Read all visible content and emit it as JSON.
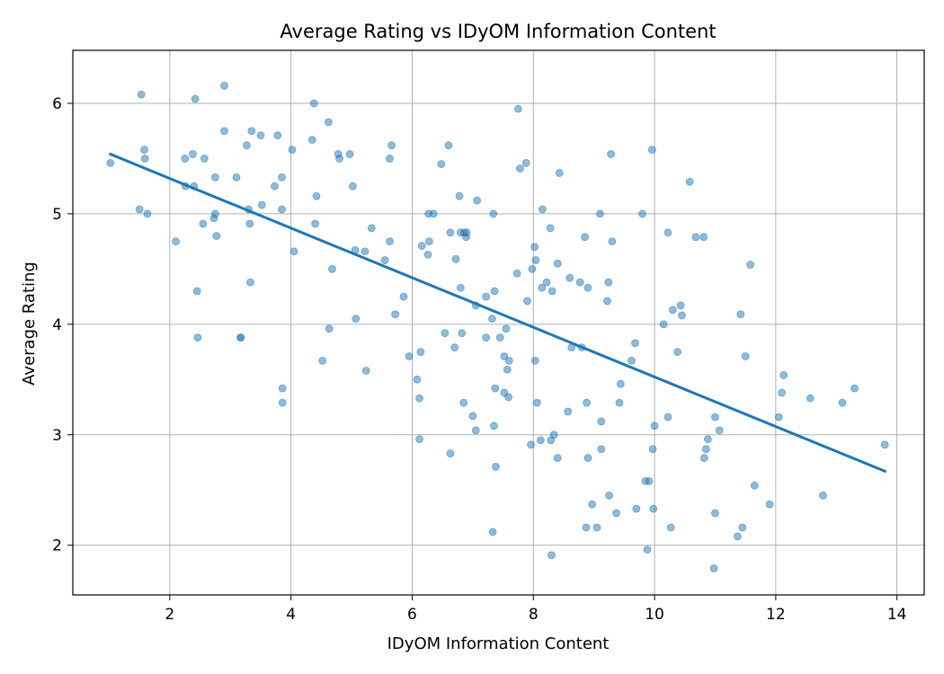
{
  "chart_data": {
    "type": "scatter",
    "title": "Average Rating vs IDyOM Information Content",
    "xlabel": "IDyOM Information Content",
    "ylabel": "Average Rating",
    "xlim": [
      0.4,
      14.45
    ],
    "ylim": [
      1.55,
      6.48
    ],
    "xticks": [
      2,
      4,
      6,
      8,
      10,
      12,
      14
    ],
    "yticks": [
      2,
      3,
      4,
      5,
      6
    ],
    "grid": true,
    "point_color": "#1f77b4",
    "line_color": "#1f77b4",
    "points": [
      [
        1.02,
        5.46
      ],
      [
        1.5,
        5.04
      ],
      [
        1.53,
        6.08
      ],
      [
        1.58,
        5.58
      ],
      [
        1.59,
        5.5
      ],
      [
        1.63,
        5.0
      ],
      [
        2.1,
        4.75
      ],
      [
        2.25,
        5.5
      ],
      [
        2.26,
        5.25
      ],
      [
        2.38,
        5.54
      ],
      [
        2.4,
        5.25
      ],
      [
        2.42,
        6.04
      ],
      [
        2.45,
        4.3
      ],
      [
        2.46,
        3.88
      ],
      [
        2.55,
        4.91
      ],
      [
        2.57,
        5.5
      ],
      [
        2.73,
        4.96
      ],
      [
        2.75,
        5.33
      ],
      [
        2.75,
        5.0
      ],
      [
        2.77,
        4.8
      ],
      [
        2.9,
        6.16
      ],
      [
        2.9,
        5.75
      ],
      [
        3.1,
        5.33
      ],
      [
        3.17,
        3.88
      ],
      [
        3.17,
        3.88
      ],
      [
        3.27,
        5.62
      ],
      [
        3.3,
        5.04
      ],
      [
        3.32,
        4.91
      ],
      [
        3.33,
        4.38
      ],
      [
        3.35,
        5.75
      ],
      [
        3.5,
        5.71
      ],
      [
        3.52,
        5.08
      ],
      [
        3.73,
        5.25
      ],
      [
        3.78,
        5.71
      ],
      [
        3.85,
        5.33
      ],
      [
        3.85,
        5.04
      ],
      [
        3.86,
        3.42
      ],
      [
        3.86,
        3.29
      ],
      [
        4.02,
        5.58
      ],
      [
        4.05,
        4.66
      ],
      [
        4.35,
        5.67
      ],
      [
        4.38,
        6.0
      ],
      [
        4.4,
        4.91
      ],
      [
        4.42,
        5.16
      ],
      [
        4.52,
        3.67
      ],
      [
        4.62,
        5.83
      ],
      [
        4.63,
        3.96
      ],
      [
        4.68,
        4.5
      ],
      [
        4.78,
        5.54
      ],
      [
        4.8,
        5.5
      ],
      [
        4.97,
        5.54
      ],
      [
        5.02,
        5.25
      ],
      [
        5.06,
        4.67
      ],
      [
        5.07,
        4.05
      ],
      [
        5.22,
        4.66
      ],
      [
        5.24,
        3.58
      ],
      [
        5.33,
        4.87
      ],
      [
        5.55,
        4.58
      ],
      [
        5.63,
        4.75
      ],
      [
        5.63,
        5.5
      ],
      [
        5.66,
        5.62
      ],
      [
        5.72,
        4.09
      ],
      [
        5.86,
        4.25
      ],
      [
        5.95,
        3.71
      ],
      [
        6.08,
        3.5
      ],
      [
        6.12,
        2.96
      ],
      [
        6.12,
        3.33
      ],
      [
        6.14,
        3.75
      ],
      [
        6.16,
        4.71
      ],
      [
        6.26,
        4.63
      ],
      [
        6.27,
        5.0
      ],
      [
        6.28,
        4.75
      ],
      [
        6.35,
        5.0
      ],
      [
        6.48,
        5.45
      ],
      [
        6.54,
        3.92
      ],
      [
        6.6,
        5.62
      ],
      [
        6.63,
        2.83
      ],
      [
        6.63,
        4.83
      ],
      [
        6.7,
        3.79
      ],
      [
        6.72,
        4.59
      ],
      [
        6.78,
        5.16
      ],
      [
        6.8,
        4.33
      ],
      [
        6.8,
        4.83
      ],
      [
        6.82,
        3.92
      ],
      [
        6.85,
        3.29
      ],
      [
        6.86,
        4.83
      ],
      [
        6.89,
        4.79
      ],
      [
        6.9,
        4.83
      ],
      [
        7.0,
        3.17
      ],
      [
        7.05,
        3.04
      ],
      [
        7.05,
        4.17
      ],
      [
        7.07,
        5.12
      ],
      [
        7.22,
        4.25
      ],
      [
        7.22,
        3.88
      ],
      [
        7.32,
        4.05
      ],
      [
        7.33,
        2.12
      ],
      [
        7.34,
        5.0
      ],
      [
        7.35,
        3.08
      ],
      [
        7.36,
        4.3
      ],
      [
        7.37,
        3.42
      ],
      [
        7.38,
        2.71
      ],
      [
        7.45,
        3.88
      ],
      [
        7.52,
        3.71
      ],
      [
        7.52,
        3.38
      ],
      [
        7.55,
        3.96
      ],
      [
        7.57,
        3.59
      ],
      [
        7.59,
        3.34
      ],
      [
        7.6,
        3.67
      ],
      [
        7.73,
        4.46
      ],
      [
        7.75,
        5.95
      ],
      [
        7.78,
        5.41
      ],
      [
        7.88,
        5.46
      ],
      [
        7.9,
        4.21
      ],
      [
        7.96,
        2.91
      ],
      [
        7.98,
        4.5
      ],
      [
        8.02,
        4.7
      ],
      [
        8.03,
        3.67
      ],
      [
        8.04,
        4.58
      ],
      [
        8.06,
        3.29
      ],
      [
        8.12,
        2.95
      ],
      [
        8.14,
        4.33
      ],
      [
        8.15,
        5.04
      ],
      [
        8.22,
        4.38
      ],
      [
        8.28,
        4.87
      ],
      [
        8.29,
        2.95
      ],
      [
        8.3,
        1.91
      ],
      [
        8.31,
        4.3
      ],
      [
        8.34,
        3.0
      ],
      [
        8.4,
        2.79
      ],
      [
        8.4,
        4.55
      ],
      [
        8.43,
        5.37
      ],
      [
        8.57,
        3.21
      ],
      [
        8.6,
        4.42
      ],
      [
        8.63,
        3.79
      ],
      [
        8.77,
        4.38
      ],
      [
        8.8,
        3.79
      ],
      [
        8.85,
        4.79
      ],
      [
        8.87,
        2.16
      ],
      [
        8.88,
        3.29
      ],
      [
        8.9,
        2.79
      ],
      [
        8.9,
        4.33
      ],
      [
        8.97,
        2.37
      ],
      [
        9.05,
        2.16
      ],
      [
        9.1,
        5.0
      ],
      [
        9.12,
        3.12
      ],
      [
        9.12,
        2.87
      ],
      [
        9.22,
        4.21
      ],
      [
        9.24,
        4.38
      ],
      [
        9.25,
        2.45
      ],
      [
        9.28,
        5.54
      ],
      [
        9.3,
        4.75
      ],
      [
        9.37,
        2.29
      ],
      [
        9.42,
        3.29
      ],
      [
        9.44,
        3.46
      ],
      [
        9.62,
        3.67
      ],
      [
        9.68,
        3.83
      ],
      [
        9.7,
        2.33
      ],
      [
        9.8,
        5.0
      ],
      [
        9.85,
        2.58
      ],
      [
        9.88,
        1.96
      ],
      [
        9.91,
        2.58
      ],
      [
        9.96,
        5.58
      ],
      [
        9.97,
        2.87
      ],
      [
        9.98,
        2.33
      ],
      [
        10.0,
        3.08
      ],
      [
        10.15,
        4.0
      ],
      [
        10.22,
        3.16
      ],
      [
        10.22,
        4.83
      ],
      [
        10.27,
        2.16
      ],
      [
        10.3,
        4.13
      ],
      [
        10.38,
        3.75
      ],
      [
        10.43,
        4.17
      ],
      [
        10.45,
        4.08
      ],
      [
        10.58,
        5.29
      ],
      [
        10.68,
        4.79
      ],
      [
        10.81,
        4.79
      ],
      [
        10.82,
        2.79
      ],
      [
        10.85,
        2.87
      ],
      [
        10.88,
        2.96
      ],
      [
        10.98,
        1.79
      ],
      [
        11.0,
        3.16
      ],
      [
        11.0,
        2.29
      ],
      [
        11.07,
        3.04
      ],
      [
        11.37,
        2.08
      ],
      [
        11.42,
        4.09
      ],
      [
        11.45,
        2.16
      ],
      [
        11.5,
        3.71
      ],
      [
        11.58,
        4.54
      ],
      [
        11.65,
        2.54
      ],
      [
        11.9,
        2.37
      ],
      [
        12.05,
        3.16
      ],
      [
        12.1,
        3.38
      ],
      [
        12.13,
        3.54
      ],
      [
        12.57,
        3.33
      ],
      [
        12.78,
        2.45
      ],
      [
        13.1,
        3.29
      ],
      [
        13.3,
        3.42
      ],
      [
        13.8,
        2.91
      ]
    ],
    "trend_line": {
      "x": [
        1.02,
        13.8
      ],
      "y": [
        5.54,
        2.67
      ]
    }
  }
}
